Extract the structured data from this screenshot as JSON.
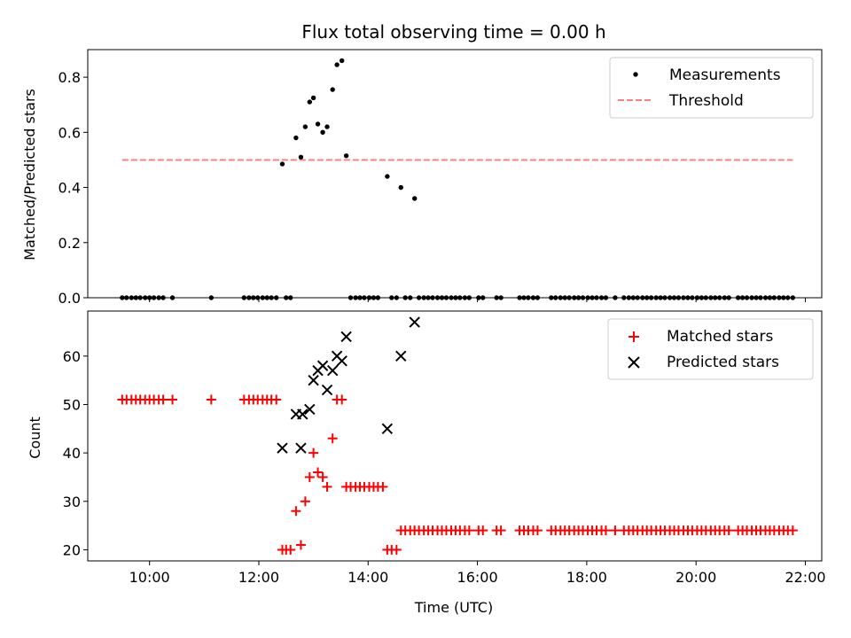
{
  "title": "Flux total observing time = 0.00 h",
  "chart_data": [
    {
      "type": "scatter",
      "ylabel": "Matched/Predicted stars",
      "xlabel": "",
      "x_unit": "hours UTC",
      "xlim": [
        8.87,
        22.3
      ],
      "ylim": [
        0.0,
        0.9
      ],
      "yticks": [
        0.0,
        0.2,
        0.4,
        0.6,
        0.8
      ],
      "ytick_labels": [
        "0.0",
        "0.2",
        "0.4",
        "0.6",
        "0.8"
      ],
      "grid": false,
      "legend": {
        "placement": "top-right",
        "entries": [
          "Measurements",
          "Threshold"
        ]
      },
      "series": [
        {
          "name": "Measurements",
          "marker": "dot",
          "color": "#000000",
          "points": [
            [
              12.43,
              0.485
            ],
            [
              12.68,
              0.58
            ],
            [
              12.77,
              0.51
            ],
            [
              12.85,
              0.62
            ],
            [
              12.93,
              0.71
            ],
            [
              13.0,
              0.725
            ],
            [
              13.08,
              0.63
            ],
            [
              13.17,
              0.6
            ],
            [
              13.25,
              0.62
            ],
            [
              13.35,
              0.755
            ],
            [
              13.43,
              0.845
            ],
            [
              13.52,
              0.86
            ],
            [
              13.6,
              0.515
            ],
            [
              14.35,
              0.44
            ],
            [
              14.6,
              0.4
            ],
            [
              14.85,
              0.36
            ],
            [
              9.5,
              0
            ],
            [
              9.58,
              0
            ],
            [
              9.67,
              0
            ],
            [
              9.75,
              0
            ],
            [
              9.83,
              0
            ],
            [
              9.92,
              0
            ],
            [
              10.0,
              0
            ],
            [
              10.08,
              0
            ],
            [
              10.17,
              0
            ],
            [
              10.25,
              0
            ],
            [
              10.42,
              0
            ],
            [
              11.13,
              0
            ],
            [
              11.73,
              0
            ],
            [
              11.82,
              0
            ],
            [
              11.9,
              0
            ],
            [
              11.98,
              0
            ],
            [
              12.07,
              0
            ],
            [
              12.15,
              0
            ],
            [
              12.23,
              0
            ],
            [
              12.32,
              0
            ],
            [
              12.5,
              0
            ],
            [
              12.58,
              0
            ],
            [
              13.68,
              0
            ],
            [
              13.77,
              0
            ],
            [
              13.85,
              0
            ],
            [
              13.93,
              0
            ],
            [
              14.02,
              0
            ],
            [
              14.1,
              0
            ],
            [
              14.18,
              0
            ],
            [
              14.43,
              0
            ],
            [
              14.52,
              0
            ],
            [
              14.68,
              0
            ],
            [
              14.77,
              0
            ],
            [
              14.93,
              0
            ],
            [
              15.02,
              0
            ],
            [
              15.1,
              0
            ],
            [
              15.18,
              0
            ],
            [
              15.27,
              0
            ],
            [
              15.35,
              0
            ],
            [
              15.43,
              0
            ],
            [
              15.52,
              0
            ],
            [
              15.6,
              0
            ],
            [
              15.68,
              0
            ],
            [
              15.77,
              0
            ],
            [
              15.85,
              0
            ],
            [
              16.02,
              0
            ],
            [
              16.1,
              0
            ],
            [
              16.35,
              0
            ],
            [
              16.43,
              0
            ],
            [
              16.77,
              0
            ],
            [
              16.85,
              0
            ],
            [
              16.93,
              0
            ],
            [
              17.02,
              0
            ],
            [
              17.1,
              0
            ],
            [
              17.35,
              0
            ],
            [
              17.43,
              0
            ],
            [
              17.52,
              0
            ],
            [
              17.6,
              0
            ],
            [
              17.68,
              0
            ],
            [
              17.77,
              0
            ],
            [
              17.85,
              0
            ],
            [
              17.93,
              0
            ],
            [
              18.02,
              0
            ],
            [
              18.1,
              0
            ],
            [
              18.18,
              0
            ],
            [
              18.27,
              0
            ],
            [
              18.35,
              0
            ],
            [
              18.52,
              0
            ],
            [
              18.68,
              0
            ],
            [
              18.77,
              0
            ],
            [
              18.85,
              0
            ],
            [
              18.93,
              0
            ],
            [
              19.02,
              0
            ],
            [
              19.1,
              0
            ],
            [
              19.18,
              0
            ],
            [
              19.27,
              0
            ],
            [
              19.35,
              0
            ],
            [
              19.43,
              0
            ],
            [
              19.52,
              0
            ],
            [
              19.6,
              0
            ],
            [
              19.68,
              0
            ],
            [
              19.77,
              0
            ],
            [
              19.85,
              0
            ],
            [
              19.93,
              0
            ],
            [
              20.02,
              0
            ],
            [
              20.1,
              0
            ],
            [
              20.18,
              0
            ],
            [
              20.27,
              0
            ],
            [
              20.35,
              0
            ],
            [
              20.43,
              0
            ],
            [
              20.52,
              0
            ],
            [
              20.6,
              0
            ],
            [
              20.77,
              0
            ],
            [
              20.85,
              0
            ],
            [
              20.93,
              0
            ],
            [
              21.02,
              0
            ],
            [
              21.1,
              0
            ],
            [
              21.18,
              0
            ],
            [
              21.27,
              0
            ],
            [
              21.35,
              0
            ],
            [
              21.43,
              0
            ],
            [
              21.52,
              0
            ],
            [
              21.6,
              0
            ],
            [
              21.68,
              0
            ],
            [
              21.77,
              0
            ]
          ]
        },
        {
          "name": "Threshold",
          "type": "line",
          "style": "dashed",
          "color": "#ff7f7f",
          "points": [
            [
              9.5,
              0.5
            ],
            [
              21.77,
              0.5
            ]
          ]
        }
      ]
    },
    {
      "type": "scatter",
      "ylabel": "Count",
      "xlabel": "Time (UTC)",
      "x_unit": "hours UTC",
      "xlim": [
        8.87,
        22.3
      ],
      "ylim": [
        17.7,
        69.3
      ],
      "yticks": [
        20,
        30,
        40,
        50,
        60
      ],
      "ytick_labels": [
        "20",
        "30",
        "40",
        "50",
        "60"
      ],
      "xticks": [
        10,
        12,
        14,
        16,
        18,
        20,
        22
      ],
      "xtick_labels": [
        "10:00",
        "12:00",
        "14:00",
        "16:00",
        "18:00",
        "20:00",
        "22:00"
      ],
      "grid": false,
      "legend": {
        "placement": "top-right",
        "entries": [
          "Matched stars",
          "Predicted stars"
        ]
      },
      "series": [
        {
          "name": "Matched stars",
          "marker": "plus",
          "color": "#ff0000",
          "points": [
            [
              9.5,
              51
            ],
            [
              9.58,
              51
            ],
            [
              9.67,
              51
            ],
            [
              9.75,
              51
            ],
            [
              9.83,
              51
            ],
            [
              9.92,
              51
            ],
            [
              10.0,
              51
            ],
            [
              10.08,
              51
            ],
            [
              10.17,
              51
            ],
            [
              10.25,
              51
            ],
            [
              10.42,
              51
            ],
            [
              11.13,
              51
            ],
            [
              11.73,
              51
            ],
            [
              11.82,
              51
            ],
            [
              11.9,
              51
            ],
            [
              11.98,
              51
            ],
            [
              12.07,
              51
            ],
            [
              12.15,
              51
            ],
            [
              12.23,
              51
            ],
            [
              12.32,
              51
            ],
            [
              12.43,
              20
            ],
            [
              12.5,
              20
            ],
            [
              12.58,
              20
            ],
            [
              12.68,
              28
            ],
            [
              12.77,
              21
            ],
            [
              12.85,
              30
            ],
            [
              12.93,
              35
            ],
            [
              13.0,
              40
            ],
            [
              13.08,
              36
            ],
            [
              13.17,
              35
            ],
            [
              13.25,
              33
            ],
            [
              13.35,
              43
            ],
            [
              13.43,
              51
            ],
            [
              13.52,
              51
            ],
            [
              13.6,
              33
            ],
            [
              13.68,
              33
            ],
            [
              13.77,
              33
            ],
            [
              13.85,
              33
            ],
            [
              13.93,
              33
            ],
            [
              14.02,
              33
            ],
            [
              14.1,
              33
            ],
            [
              14.18,
              33
            ],
            [
              14.27,
              33
            ],
            [
              14.35,
              20
            ],
            [
              14.43,
              20
            ],
            [
              14.52,
              20
            ],
            [
              14.6,
              24
            ],
            [
              14.68,
              24
            ],
            [
              14.77,
              24
            ],
            [
              14.85,
              24
            ],
            [
              14.93,
              24
            ],
            [
              15.02,
              24
            ],
            [
              15.1,
              24
            ],
            [
              15.18,
              24
            ],
            [
              15.27,
              24
            ],
            [
              15.35,
              24
            ],
            [
              15.43,
              24
            ],
            [
              15.52,
              24
            ],
            [
              15.6,
              24
            ],
            [
              15.68,
              24
            ],
            [
              15.77,
              24
            ],
            [
              15.85,
              24
            ],
            [
              16.02,
              24
            ],
            [
              16.1,
              24
            ],
            [
              16.35,
              24
            ],
            [
              16.43,
              24
            ],
            [
              16.77,
              24
            ],
            [
              16.85,
              24
            ],
            [
              16.93,
              24
            ],
            [
              17.02,
              24
            ],
            [
              17.1,
              24
            ],
            [
              17.35,
              24
            ],
            [
              17.43,
              24
            ],
            [
              17.52,
              24
            ],
            [
              17.6,
              24
            ],
            [
              17.68,
              24
            ],
            [
              17.77,
              24
            ],
            [
              17.85,
              24
            ],
            [
              17.93,
              24
            ],
            [
              18.02,
              24
            ],
            [
              18.1,
              24
            ],
            [
              18.18,
              24
            ],
            [
              18.27,
              24
            ],
            [
              18.35,
              24
            ],
            [
              18.52,
              24
            ],
            [
              18.68,
              24
            ],
            [
              18.77,
              24
            ],
            [
              18.85,
              24
            ],
            [
              18.93,
              24
            ],
            [
              19.02,
              24
            ],
            [
              19.1,
              24
            ],
            [
              19.18,
              24
            ],
            [
              19.27,
              24
            ],
            [
              19.35,
              24
            ],
            [
              19.43,
              24
            ],
            [
              19.52,
              24
            ],
            [
              19.6,
              24
            ],
            [
              19.68,
              24
            ],
            [
              19.77,
              24
            ],
            [
              19.85,
              24
            ],
            [
              19.93,
              24
            ],
            [
              20.02,
              24
            ],
            [
              20.1,
              24
            ],
            [
              20.18,
              24
            ],
            [
              20.27,
              24
            ],
            [
              20.35,
              24
            ],
            [
              20.43,
              24
            ],
            [
              20.52,
              24
            ],
            [
              20.6,
              24
            ],
            [
              20.77,
              24
            ],
            [
              20.85,
              24
            ],
            [
              20.93,
              24
            ],
            [
              21.02,
              24
            ],
            [
              21.1,
              24
            ],
            [
              21.18,
              24
            ],
            [
              21.27,
              24
            ],
            [
              21.35,
              24
            ],
            [
              21.43,
              24
            ],
            [
              21.52,
              24
            ],
            [
              21.6,
              24
            ],
            [
              21.68,
              24
            ],
            [
              21.77,
              24
            ]
          ]
        },
        {
          "name": "Predicted stars",
          "marker": "x",
          "color": "#000000",
          "points": [
            [
              12.43,
              41
            ],
            [
              12.68,
              48
            ],
            [
              12.77,
              41
            ],
            [
              12.8,
              48
            ],
            [
              12.93,
              49
            ],
            [
              13.0,
              55
            ],
            [
              13.08,
              57
            ],
            [
              13.17,
              58
            ],
            [
              13.25,
              53
            ],
            [
              13.35,
              57
            ],
            [
              13.43,
              60
            ],
            [
              13.52,
              59
            ],
            [
              13.6,
              64
            ],
            [
              14.35,
              45
            ],
            [
              14.6,
              60
            ],
            [
              14.85,
              67
            ]
          ]
        }
      ]
    }
  ]
}
